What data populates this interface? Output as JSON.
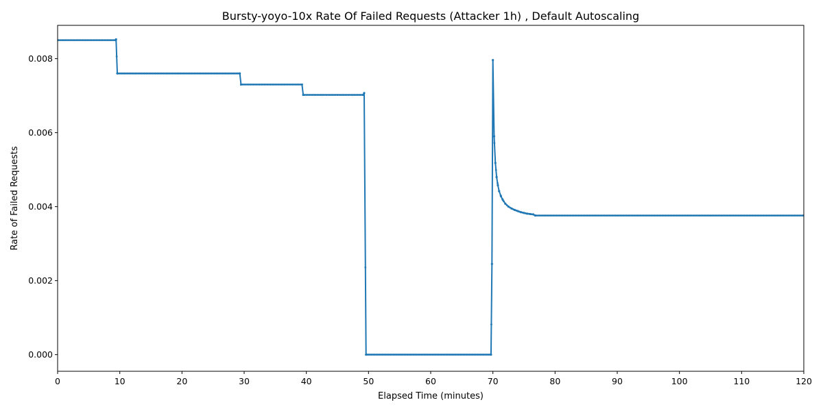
{
  "chart_data": {
    "type": "line",
    "title": "Bursty-yoyo-10x Rate Of Failed Requests (Attacker 1h) , Default Autoscaling",
    "xlabel": "Elapsed Time (minutes)",
    "ylabel": "Rate of Failed Requests",
    "xlim": [
      0,
      120
    ],
    "ylim": [
      -0.00045,
      0.0089
    ],
    "xticks": [
      0,
      10,
      20,
      30,
      40,
      50,
      60,
      70,
      80,
      90,
      100,
      110,
      120
    ],
    "xtick_labels": [
      "0",
      "10",
      "20",
      "30",
      "40",
      "50",
      "60",
      "70",
      "80",
      "90",
      "100",
      "110",
      "120"
    ],
    "yticks": [
      0,
      0.002,
      0.004,
      0.006,
      0.008
    ],
    "ytick_labels": [
      "0.000",
      "0.002",
      "0.004",
      "0.006",
      "0.008"
    ],
    "grid": false,
    "color": "#1f77b4",
    "series": [
      {
        "x": [
          0,
          9.3,
          9.4,
          9.6,
          29.3,
          29.5,
          39.3,
          39.5,
          49.2,
          49.3,
          49.6,
          69.7,
          69.85,
          70.0,
          70.2,
          70.4,
          70.6,
          70.8,
          71.0,
          71.3,
          71.6,
          72.0,
          72.5,
          73.0,
          73.5,
          74.0,
          74.5,
          75.0,
          75.5,
          76.0,
          76.5,
          76.8,
          120
        ],
        "y": [
          0.0085,
          0.0085,
          0.00852,
          0.0076,
          0.0076,
          0.0073,
          0.0073,
          0.00702,
          0.00702,
          0.00707,
          0.0,
          0.0,
          0.00245,
          0.00796,
          0.0059,
          0.00518,
          0.0048,
          0.00458,
          0.00442,
          0.00428,
          0.00418,
          0.00408,
          0.004,
          0.00395,
          0.00391,
          0.00388,
          0.00385,
          0.00383,
          0.00381,
          0.0038,
          0.00379,
          0.00376,
          0.00376
        ]
      }
    ]
  }
}
